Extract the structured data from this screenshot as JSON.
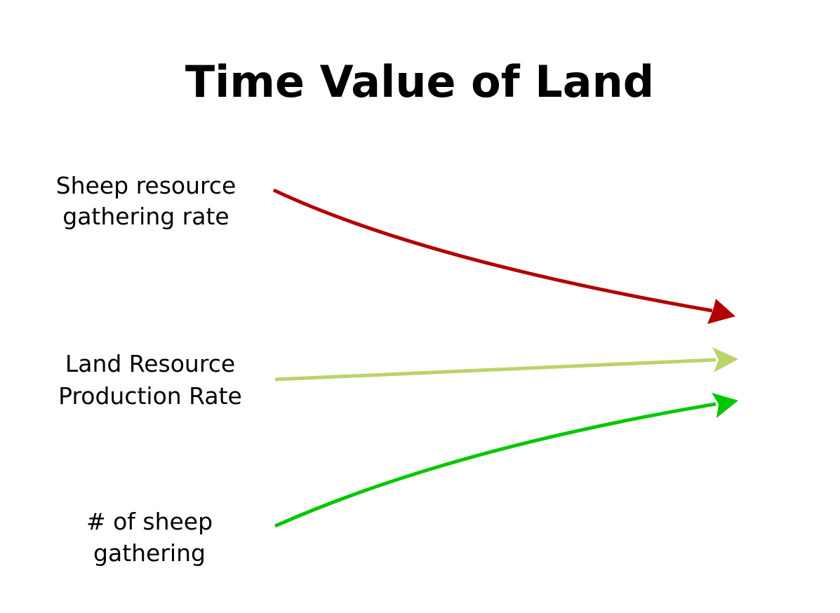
{
  "title": "Time Value of Land",
  "nodes": [
    {
      "label": [
        "Sheep resource",
        "gathering rate"
      ]
    },
    {
      "label": [
        "Land Resource",
        "Production Rate"
      ]
    },
    {
      "label": [
        "# of sheep",
        "gathering"
      ]
    }
  ]
}
